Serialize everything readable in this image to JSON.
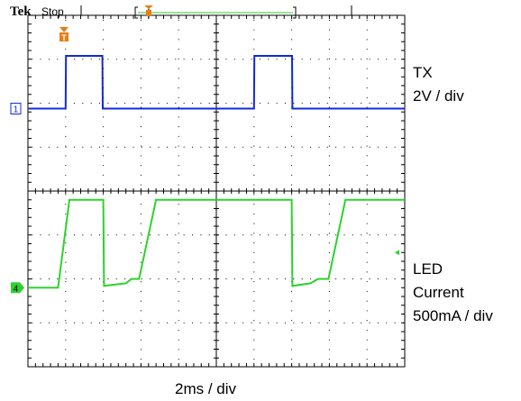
{
  "header": {
    "brand": "Tek",
    "acquisition_status": "Stop"
  },
  "colors": {
    "ch1": "#1428dc",
    "ch4": "#2dd22d",
    "trigger": "#e87d14",
    "graticule": "#000000",
    "background": "#ffffff"
  },
  "labels": {
    "tx_name": "TX",
    "tx_scale": "2V / div",
    "led_name_1": "LED",
    "led_name_2": "Current",
    "led_scale": "500mA / div",
    "time_scale": "2ms / div"
  },
  "markers": {
    "ch1": "1",
    "ch4": "4",
    "trigger": "T"
  },
  "chart_data": {
    "type": "line",
    "x_unit": "ms",
    "x_divisions": 10,
    "y_divisions": 8,
    "time_per_div_ms": 2,
    "grid": true,
    "series": [
      {
        "name": "TX",
        "channel": 1,
        "volts_per_div": 2,
        "x": [
          0,
          2.0,
          2.02,
          3.95,
          3.97,
          12.0,
          12.02,
          14.02,
          14.04,
          20
        ],
        "y": [
          0,
          0,
          2.4,
          2.4,
          0,
          0,
          2.4,
          2.4,
          0,
          0
        ]
      },
      {
        "name": "LED Current",
        "channel": 4,
        "amps_per_div": 0.5,
        "x": [
          0,
          1.6,
          2.2,
          4.0,
          4.04,
          5.2,
          5.5,
          5.9,
          6.8,
          14.0,
          14.04,
          15.0,
          15.4,
          15.95,
          16.85,
          20
        ],
        "y": [
          0,
          0,
          1.0,
          1.0,
          0.02,
          0.05,
          0.1,
          0.1,
          1.0,
          1.0,
          0.02,
          0.05,
          0.1,
          0.1,
          1.0,
          1.0
        ]
      }
    ]
  }
}
